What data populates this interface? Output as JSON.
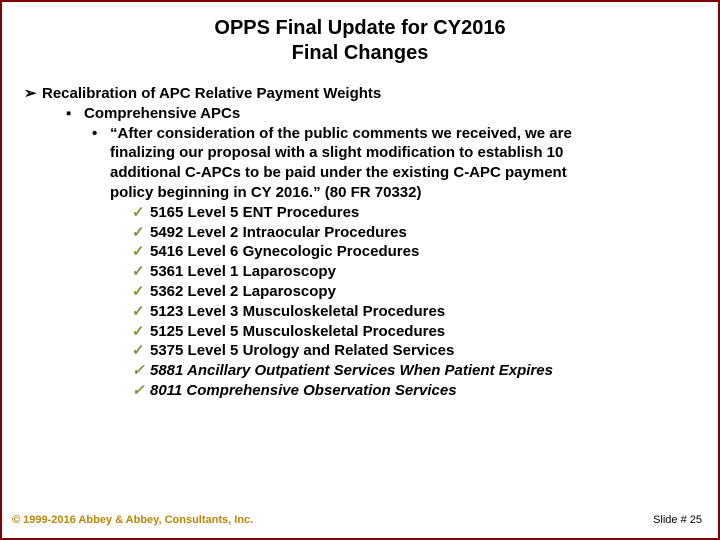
{
  "title_line1": "OPPS Final Update for CY2016",
  "title_line2": "Final Changes",
  "lvl1": "Recalibration of APC Relative Payment Weights",
  "lvl2": "Comprehensive APCs",
  "lvl3_a": "“After consideration of the public comments we received, we are",
  "lvl3_b": "finalizing our proposal with a slight modification to establish 10",
  "lvl3_c": "additional C-APCs to be paid under the existing C-APC payment",
  "lvl3_d": "policy beginning in CY 2016.”  (80 FR 70332)",
  "items": [
    "5165 Level 5 ENT Procedures",
    "5492 Level 2 Intraocular Procedures",
    "5416 Level 6 Gynecologic Procedures",
    "5361 Level 1 Laparoscopy",
    "5362 Level 2 Laparoscopy",
    "5123 Level 3 Musculoskeletal Procedures",
    "5125 Level 5 Musculoskeletal Procedures",
    "5375 Level 5 Urology and Related Services"
  ],
  "items_italic": [
    "5881 Ancillary Outpatient Services When Patient Expires",
    "8011 Comprehensive Observation Services"
  ],
  "copyright": "© 1999-2016 Abbey & Abbey, Consultants, Inc.",
  "slide_num": "Slide # 25",
  "colors": {
    "border": "#800000",
    "check": "#7a9a3a",
    "copyright": "#b8860b"
  }
}
